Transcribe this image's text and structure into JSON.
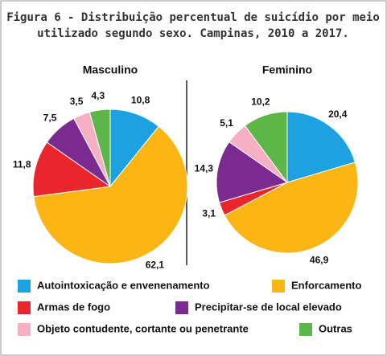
{
  "title": "Figura 6 - Distribuição percentual de suicídio por meio utilizado segundo sexo. Campinas, 2010 a 2017.",
  "chart_data": [
    {
      "type": "pie",
      "title": "Masculino",
      "categories": [
        "Autointoxicação e envenenamento",
        "Enforcamento",
        "Armas de fogo",
        "Precipitar-se de local elevado",
        "Objeto contudente, cortante ou penetrante",
        "Outras"
      ],
      "values": [
        10.8,
        62.1,
        11.8,
        7.5,
        3.5,
        4.3
      ],
      "value_labels": [
        "10,8",
        "62,1",
        "11,8",
        "7,5",
        "3,5",
        "4,3"
      ],
      "colors": [
        "#1ea1e0",
        "#fbb515",
        "#e8262b",
        "#7b2a90",
        "#f6b0c3",
        "#5cb748"
      ]
    },
    {
      "type": "pie",
      "title": "Feminino",
      "categories": [
        "Autointoxicação e envenenamento",
        "Enforcamento",
        "Armas de fogo",
        "Precipitar-se de local elevado",
        "Objeto contudente, cortante ou penetrante",
        "Outras"
      ],
      "values": [
        20.4,
        46.9,
        3.1,
        14.3,
        5.1,
        10.2
      ],
      "value_labels": [
        "20,4",
        "46,9",
        "3,1",
        "14,3",
        "5,1",
        "10,2"
      ],
      "colors": [
        "#1ea1e0",
        "#fbb515",
        "#e8262b",
        "#7b2a90",
        "#f6b0c3",
        "#5cb748"
      ]
    }
  ]
}
